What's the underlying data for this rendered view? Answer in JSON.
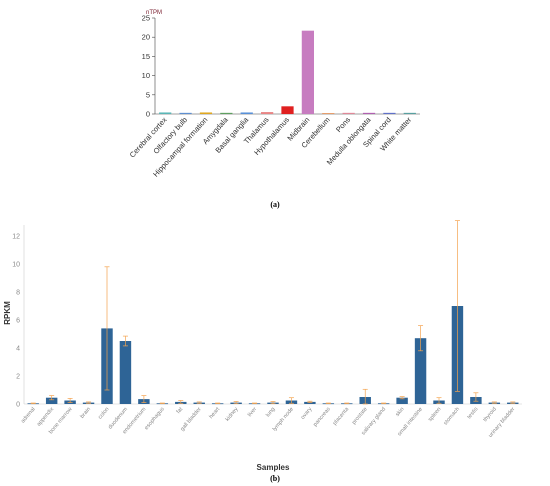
{
  "chart_data": [
    {
      "type": "bar",
      "panel_label": "(a)",
      "unit_label": "nTPM",
      "ylim": [
        0,
        25
      ],
      "yticks": [
        0,
        5,
        10,
        15,
        20,
        25
      ],
      "categories": [
        "Cerebral cortex",
        "Olfactory bulb",
        "Hippocampal formation",
        "Amygdala",
        "Basal ganglia",
        "Thalamus",
        "Hypothalamus",
        "Midbrain",
        "Cerebellum",
        "Pons",
        "Medulla oblongata",
        "Spinal cord",
        "White matter"
      ],
      "values": [
        0.4,
        0.3,
        0.4,
        0.3,
        0.4,
        0.5,
        2.0,
        21.7,
        0.2,
        0.3,
        0.3,
        0.3,
        0.3
      ],
      "colors": [
        "#5ab6b6",
        "#5f8fd0",
        "#e0a820",
        "#5fa060",
        "#5890d8",
        "#e98585",
        "#e02020",
        "#c77cc0",
        "#e08040",
        "#e08898",
        "#b060b0",
        "#6070c8",
        "#58a0a0"
      ],
      "grid": false
    },
    {
      "type": "bar",
      "panel_label": "(b)",
      "xlabel": "Samples",
      "ylabel": "RPKM",
      "ylim": [
        0,
        13
      ],
      "yticks": [
        0,
        2,
        4,
        6,
        8,
        10,
        12
      ],
      "categories": [
        "adrenal",
        "appendix",
        "bone marrow",
        "brain",
        "colon",
        "duodenum",
        "endometrium",
        "esophagus",
        "fat",
        "gall bladder",
        "heart",
        "kidney",
        "liver",
        "lung",
        "lymph node",
        "ovary",
        "pancreas",
        "placenta",
        "prostate",
        "salivary gland",
        "skin",
        "small intestine",
        "spleen",
        "stomach",
        "testis",
        "thyroid",
        "urinary bladder"
      ],
      "values": [
        0.05,
        0.45,
        0.25,
        0.1,
        5.4,
        4.5,
        0.35,
        0.05,
        0.15,
        0.1,
        0.05,
        0.1,
        0.05,
        0.1,
        0.25,
        0.15,
        0.05,
        0.05,
        0.5,
        0.05,
        0.45,
        4.7,
        0.25,
        7.0,
        0.5,
        0.1,
        0.1
      ],
      "errors": [
        0.02,
        0.15,
        0.15,
        0.05,
        4.4,
        0.35,
        0.25,
        0.02,
        0.1,
        0.05,
        0.02,
        0.08,
        0.02,
        0.08,
        0.2,
        0.05,
        0.02,
        0.02,
        0.55,
        0.02,
        0.08,
        0.9,
        0.2,
        6.1,
        0.3,
        0.05,
        0.05
      ],
      "bar_color": "#2e6496",
      "error_color": "#f4a34e",
      "grid": false
    }
  ]
}
